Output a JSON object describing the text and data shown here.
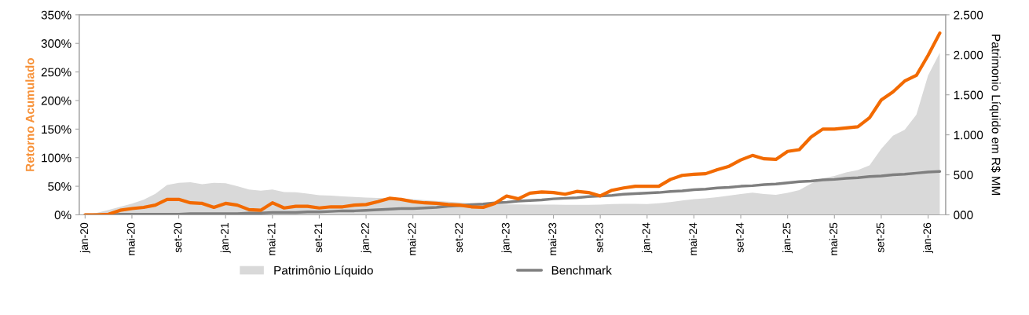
{
  "chart_data": {
    "type": "line",
    "ylabel": "Retorno Acumulado",
    "y2label": "Patrimonio Líquido em R$ MM",
    "categories": [
      "jan-20",
      null,
      null,
      null,
      "mai-20",
      null,
      null,
      null,
      "set-20",
      null,
      null,
      null,
      "jan-21",
      null,
      null,
      null,
      "mai-21",
      null,
      null,
      null,
      "set-21",
      null,
      null,
      null,
      "jan-22",
      null,
      null,
      null,
      "mai-22",
      null,
      null,
      null,
      "set-22",
      null,
      null,
      null,
      "jan-23",
      null,
      null,
      null,
      "mai-23",
      null,
      null,
      null,
      "set-23",
      null,
      null,
      null,
      "jan-24",
      null,
      null,
      null,
      "mai-24",
      null,
      null,
      null,
      "set-24",
      null,
      null,
      null,
      "jan-25",
      null,
      null,
      null,
      "mai-25",
      null,
      null,
      null,
      "set-25",
      null,
      null,
      null,
      "jan-26",
      null
    ],
    "series": [
      {
        "name": "Patrimônio Líquido",
        "type": "area",
        "axis": "y2",
        "color": "#d9d9d9",
        "values": [
          0,
          25,
          60,
          100,
          140,
          189,
          263,
          373,
          399,
          408,
          382,
          399,
          396,
          358,
          316,
          302,
          316,
          284,
          281,
          266,
          245,
          240,
          230,
          222,
          215,
          210,
          210,
          205,
          195,
          185,
          175,
          165,
          155,
          145,
          138,
          132,
          130,
          130,
          128,
          128,
          128,
          125,
          125,
          125,
          128,
          135,
          138,
          138,
          135,
          145,
          160,
          180,
          195,
          205,
          220,
          240,
          260,
          278,
          260,
          249,
          275,
          308,
          390,
          456,
          485,
          531,
          560,
          618,
          825,
          988,
          1062,
          1252,
          1743,
          2024
        ]
      },
      {
        "name": "Benchmark",
        "type": "line",
        "color": "#7f7f7f",
        "values": [
          0,
          0,
          0,
          1,
          1,
          1,
          1,
          1,
          1,
          2,
          2,
          2,
          2,
          2,
          3,
          3,
          4,
          4,
          4,
          5,
          5,
          6,
          7,
          7,
          8,
          9,
          10,
          11,
          11,
          12,
          13,
          15,
          16,
          18,
          19,
          21,
          22,
          24,
          25,
          26,
          28,
          29,
          30,
          32,
          33,
          34,
          36,
          37,
          38,
          39,
          41,
          42,
          44,
          45,
          47,
          48,
          50,
          51,
          53,
          54,
          56,
          58,
          59,
          61,
          62,
          64,
          65,
          67,
          68,
          70,
          71,
          73,
          75,
          76
        ]
      },
      {
        "color": "#f26a00",
        "values": [
          0,
          0,
          1,
          8,
          11,
          13,
          17,
          27,
          27,
          21,
          20,
          13,
          20,
          17,
          9,
          8,
          21,
          12,
          15,
          15,
          12,
          14,
          14,
          17,
          18,
          23,
          29,
          27,
          23,
          21,
          20,
          18,
          17,
          14,
          13,
          20,
          33,
          28,
          38,
          40,
          39,
          36,
          41,
          39,
          33,
          43,
          47,
          50,
          50,
          50,
          62,
          69,
          71,
          72,
          79,
          85,
          96,
          104,
          98,
          97,
          111,
          114,
          136,
          150,
          150,
          152,
          154,
          170,
          201,
          215,
          234,
          244,
          279,
          318
        ]
      }
    ],
    "ylim": [
      0,
      350
    ],
    "yticks": [
      {
        "value": 0,
        "label": "0%"
      },
      {
        "value": 50,
        "label": "50%"
      },
      {
        "value": 100,
        "label": "100%"
      },
      {
        "value": 150,
        "label": "150%"
      },
      {
        "value": 200,
        "label": "200%"
      },
      {
        "value": 250,
        "label": "250%"
      },
      {
        "value": 300,
        "label": "300%"
      },
      {
        "value": 350,
        "label": "350%"
      }
    ],
    "y2lim": [
      0,
      2500
    ],
    "y2ticks": [
      {
        "value": 0,
        "label": "000"
      },
      {
        "value": 500,
        "label": "500"
      },
      {
        "value": 1000,
        "label": "1.000"
      },
      {
        "value": 1500,
        "label": "1.500"
      },
      {
        "value": 2000,
        "label": "2.000"
      },
      {
        "value": 2500,
        "label": "2.500"
      }
    ],
    "grid": false,
    "legend": "bottom"
  }
}
